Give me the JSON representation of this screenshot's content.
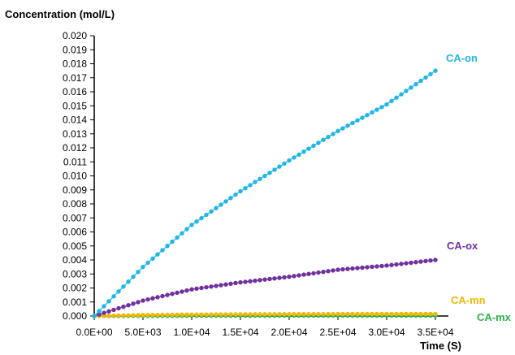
{
  "chart_data": {
    "type": "scatter",
    "title": "",
    "ylabel": "Concentration (mol/L)",
    "xlabel": "Time (S)",
    "xlim": [
      0,
      36000
    ],
    "ylim": [
      0,
      0.02
    ],
    "x_ticks": [
      0,
      5000,
      10000,
      15000,
      20000,
      25000,
      30000,
      35000
    ],
    "x_tick_labels": [
      "0.0E+00",
      "5.0E+03",
      "1.0E+04",
      "1.5E+04",
      "2.0E+04",
      "2.5E+04",
      "3.0E+04",
      "3.5E+04"
    ],
    "y_ticks": [
      0,
      0.001,
      0.002,
      0.003,
      0.004,
      0.005,
      0.006,
      0.007,
      0.008,
      0.009,
      0.01,
      0.011,
      0.012,
      0.013,
      0.014,
      0.015,
      0.016,
      0.017,
      0.018,
      0.019,
      0.02
    ],
    "y_tick_labels": [
      "0.000",
      "0.001",
      "0.002",
      "0.003",
      "0.004",
      "0.005",
      "0.006",
      "0.007",
      "0.008",
      "0.009",
      "0.010",
      "0.011",
      "0.012",
      "0.013",
      "0.014",
      "0.015",
      "0.016",
      "0.017",
      "0.018",
      "0.019",
      "0.020"
    ],
    "grid": false,
    "legend": "none",
    "series": [
      {
        "name": "CA-on",
        "color": "#1fb6e8",
        "x": [
          0,
          5000,
          10000,
          15000,
          20000,
          25000,
          30000,
          35000
        ],
        "y": [
          0,
          0.0035,
          0.0065,
          0.0089,
          0.0111,
          0.0132,
          0.0151,
          0.0175
        ]
      },
      {
        "name": "CA-ox",
        "color": "#7030a0",
        "x": [
          0,
          5000,
          10000,
          15000,
          20000,
          25000,
          30000,
          35000
        ],
        "y": [
          0,
          0.0011,
          0.0019,
          0.0024,
          0.0028,
          0.0033,
          0.0036,
          0.004
        ]
      },
      {
        "name": "CA-mn",
        "color": "#f2b800",
        "x": [
          0,
          5000,
          10000,
          15000,
          20000,
          25000,
          30000,
          35000
        ],
        "y": [
          0,
          7e-05,
          0.0001,
          0.00012,
          0.00013,
          0.00014,
          0.00015,
          0.00015
        ]
      },
      {
        "name": "CA-mx",
        "color": "#2bb34b",
        "x": [
          0,
          5000,
          10000,
          15000,
          20000,
          25000,
          30000,
          35000
        ],
        "y": [
          0,
          1e-05,
          2e-05,
          2e-05,
          3e-05,
          3e-05,
          3e-05,
          3e-05
        ]
      }
    ]
  }
}
